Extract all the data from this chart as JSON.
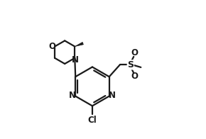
{
  "bg_color": "#ffffff",
  "line_color": "#1a1a1a",
  "line_width": 1.6,
  "figsize": [
    2.9,
    1.96
  ],
  "dpi": 100,
  "xlim": [
    -0.05,
    1.05
  ],
  "ylim": [
    -0.05,
    1.05
  ]
}
